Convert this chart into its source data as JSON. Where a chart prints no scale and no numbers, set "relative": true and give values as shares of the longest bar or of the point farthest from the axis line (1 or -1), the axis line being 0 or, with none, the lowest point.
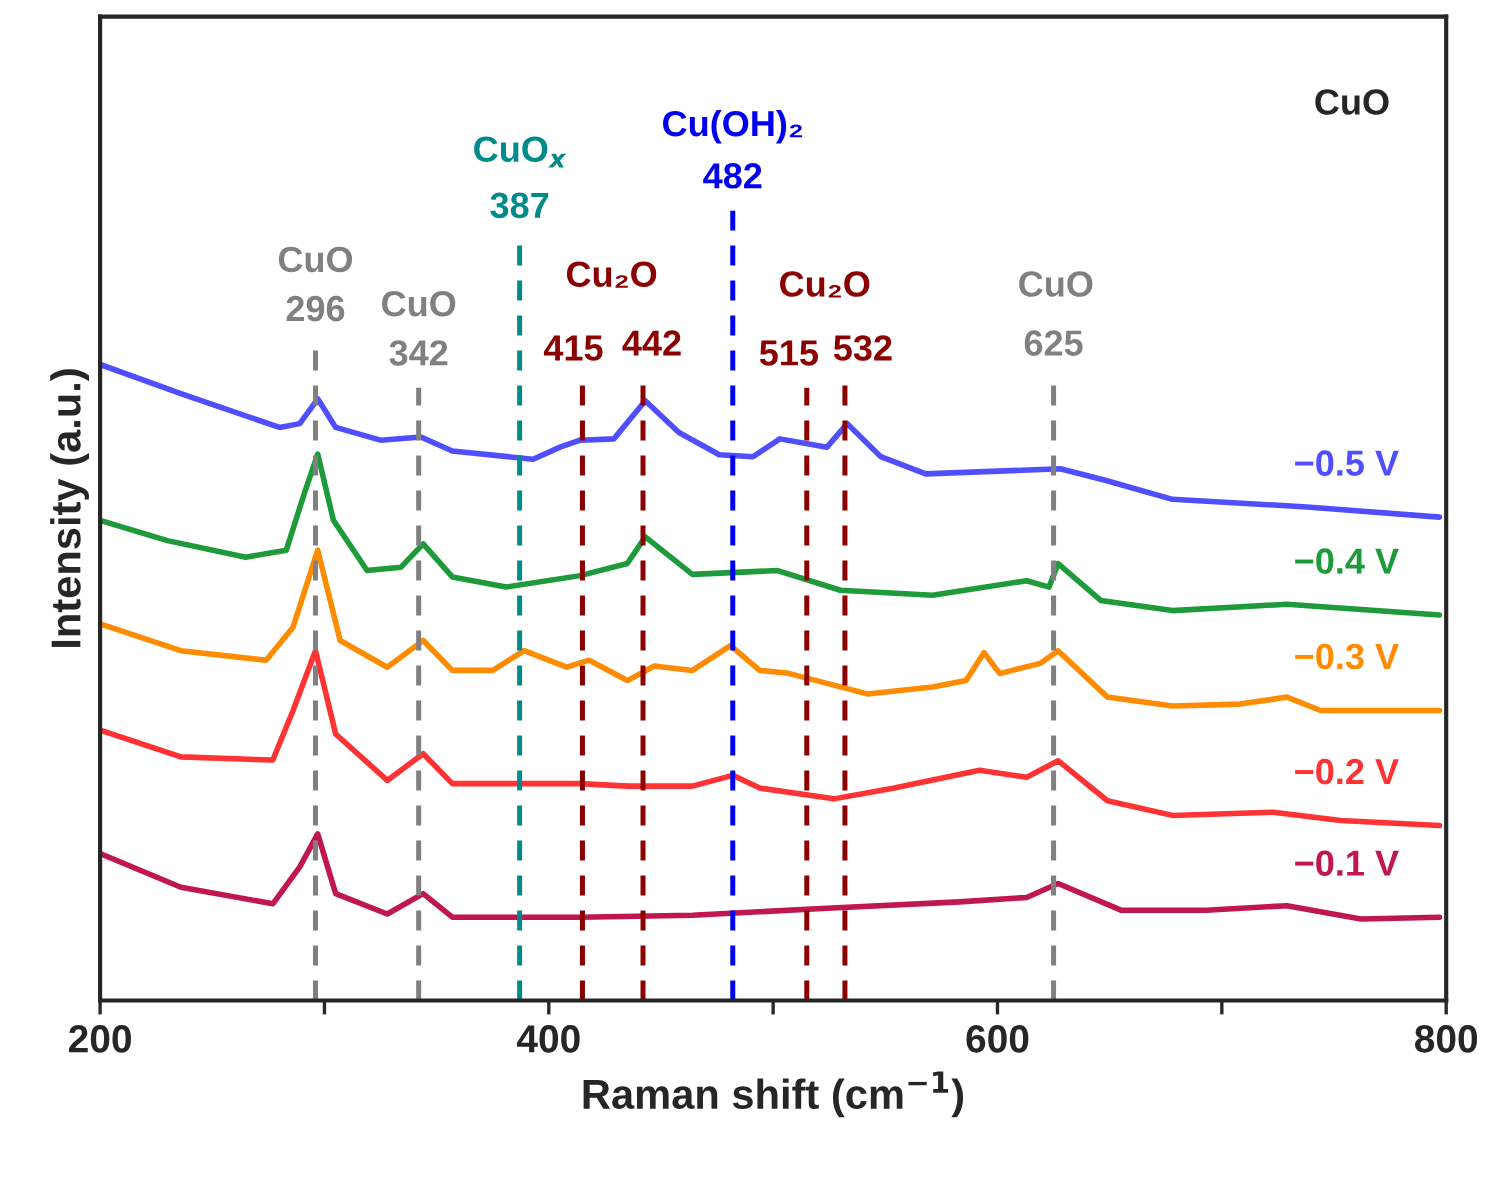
{
  "chart_data": {
    "type": "line",
    "title": "CuO",
    "xlabel": "Raman shift (cm$^{−1}$)",
    "ylabel": "Intensity (a.u.)",
    "relative": true,
    "xlim": [
      200,
      800
    ],
    "xticks": [
      200,
      {
        "value": 300,
        "label": null
      },
      400,
      {
        "value": 500,
        "label": null
      },
      600,
      {
        "value": 700,
        "label": null
      },
      800
    ],
    "grid": false,
    "legend": false,
    "marker": "none",
    "line_style": "solid",
    "series": [
      {
        "name": "−0.5 V",
        "color": "#4f4fff",
        "x": [
          200,
          236,
          280,
          289,
          297,
          305,
          325,
          343,
          357,
          393,
          405,
          414,
          429,
          443,
          458,
          476,
          491,
          503,
          524,
          533,
          548,
          568,
          628,
          648,
          678,
          738,
          797
        ],
        "values": [
          1.0,
          0.954,
          0.901,
          0.907,
          0.946,
          0.901,
          0.881,
          0.886,
          0.864,
          0.851,
          0.87,
          0.881,
          0.883,
          0.943,
          0.893,
          0.858,
          0.855,
          0.883,
          0.87,
          0.907,
          0.855,
          0.828,
          0.836,
          0.818,
          0.788,
          0.776,
          0.76
        ]
      },
      {
        "name": "−0.4 V",
        "color": "#1e9a3a",
        "x": [
          200,
          230,
          265,
          283,
          291,
          297,
          304,
          319,
          334,
          344,
          357,
          381,
          414,
          435,
          443,
          464,
          502,
          530,
          571,
          613,
          623,
          627,
          646,
          678,
          729,
          797
        ],
        "values": [
          0.755,
          0.723,
          0.697,
          0.708,
          0.797,
          0.859,
          0.755,
          0.676,
          0.681,
          0.718,
          0.666,
          0.65,
          0.668,
          0.687,
          0.729,
          0.67,
          0.676,
          0.645,
          0.637,
          0.66,
          0.65,
          0.687,
          0.629,
          0.613,
          0.623,
          0.606
        ]
      },
      {
        "name": "−0.3 V",
        "color": "#ff8c00",
        "x": [
          200,
          236,
          274,
          286,
          297,
          307,
          328,
          344,
          357,
          375,
          389,
          408,
          418,
          435,
          447,
          464,
          481,
          494,
          506,
          542,
          571,
          586,
          594,
          601,
          619,
          627,
          649,
          678,
          708,
          729,
          744,
          797
        ],
        "values": [
          0.592,
          0.55,
          0.535,
          0.587,
          0.708,
          0.566,
          0.524,
          0.566,
          0.519,
          0.519,
          0.55,
          0.524,
          0.535,
          0.503,
          0.526,
          0.519,
          0.558,
          0.519,
          0.515,
          0.482,
          0.493,
          0.503,
          0.547,
          0.514,
          0.53,
          0.55,
          0.477,
          0.463,
          0.466,
          0.477,
          0.456,
          0.456
        ]
      },
      {
        "name": "−0.2 V",
        "color": "#ff3333",
        "x": [
          200,
          236,
          277,
          286,
          296,
          305,
          328,
          344,
          357,
          414,
          435,
          464,
          482,
          494,
          527,
          554,
          592,
          613,
          627,
          649,
          678,
          723,
          753,
          797
        ],
        "values": [
          0.425,
          0.383,
          0.378,
          0.456,
          0.55,
          0.419,
          0.346,
          0.388,
          0.341,
          0.341,
          0.337,
          0.337,
          0.354,
          0.334,
          0.317,
          0.334,
          0.362,
          0.351,
          0.377,
          0.314,
          0.291,
          0.296,
          0.283,
          0.275
        ]
      },
      {
        "name": "−0.1 V",
        "color": "#c0174e",
        "x": [
          200,
          236,
          277,
          289,
          297,
          305,
          328,
          344,
          357,
          414,
          464,
          524,
          583,
          613,
          627,
          655,
          693,
          729,
          762,
          797
        ],
        "values": [
          0.231,
          0.178,
          0.152,
          0.21,
          0.262,
          0.168,
          0.136,
          0.168,
          0.131,
          0.131,
          0.134,
          0.145,
          0.155,
          0.162,
          0.184,
          0.142,
          0.142,
          0.149,
          0.128,
          0.131
        ]
      }
    ],
    "ref_lines": [
      {
        "axis": "x",
        "value": 296,
        "label": "296",
        "color": "#808080",
        "line_style": "dashed"
      },
      {
        "axis": "x",
        "value": 342,
        "label": "342",
        "color": "#808080",
        "line_style": "dashed"
      },
      {
        "axis": "x",
        "value": 387,
        "label": "387",
        "color": "#008b8b",
        "line_style": "dashed"
      },
      {
        "axis": "x",
        "value": 415,
        "label": "415",
        "color": "#8b0000",
        "line_style": "dashed"
      },
      {
        "axis": "x",
        "value": 442,
        "label": "442",
        "color": "#8b0000",
        "line_style": "dashed"
      },
      {
        "axis": "x",
        "value": 482,
        "label": "482",
        "color": "#0000ee",
        "line_style": "dashed"
      },
      {
        "axis": "x",
        "value": 515,
        "label": "515",
        "color": "#8b0000",
        "line_style": "dashed"
      },
      {
        "axis": "x",
        "value": 532,
        "label": "532",
        "color": "#8b0000",
        "line_style": "dashed"
      },
      {
        "axis": "x",
        "value": 625,
        "label": "625",
        "color": "#808080",
        "line_style": "dashed"
      }
    ],
    "annotations": [
      "CuO",
      "CuO",
      "CuO$_{x}$",
      "Cu₂O",
      "Cu(OH)₂",
      "Cu₂O",
      "CuO"
    ]
  }
}
